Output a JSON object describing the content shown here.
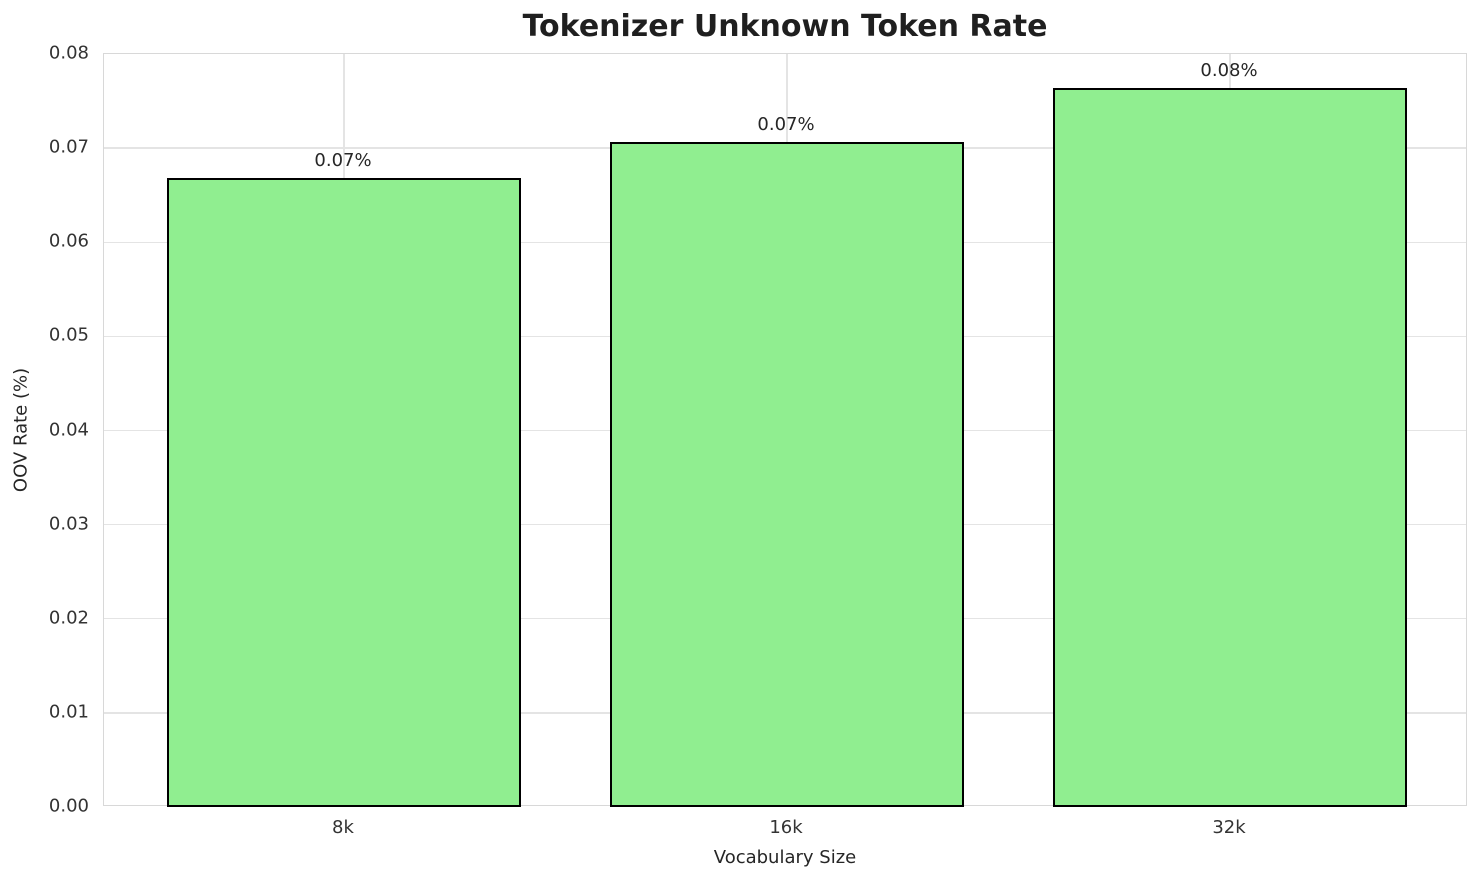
{
  "title": "Tokenizer Unknown Token Rate",
  "chart_data": {
    "type": "bar",
    "title": "Tokenizer Unknown Token Rate",
    "xlabel": "Vocabulary Size",
    "ylabel": "OOV Rate (%)",
    "categories": [
      "8k",
      "16k",
      "32k"
    ],
    "values": [
      0.0668,
      0.0707,
      0.0764
    ],
    "bar_labels": [
      "0.07%",
      "0.07%",
      "0.08%"
    ],
    "ylim": [
      0.0,
      0.08
    ],
    "yticks": [
      0.0,
      0.01,
      0.02,
      0.03,
      0.04,
      0.05,
      0.06,
      0.07,
      0.08
    ],
    "ytick_labels": [
      "0.00",
      "0.01",
      "0.02",
      "0.03",
      "0.04",
      "0.05",
      "0.06",
      "0.07",
      "0.08"
    ],
    "grid": "horizontal lines at y ticks, vertical lines at category centers",
    "legend": false,
    "colors": {
      "bar_fill": "#90EE90",
      "bar_edge": "#000000",
      "grid": "#e4e4e4",
      "spine": "#d8d8d8",
      "text": "#262626"
    }
  }
}
